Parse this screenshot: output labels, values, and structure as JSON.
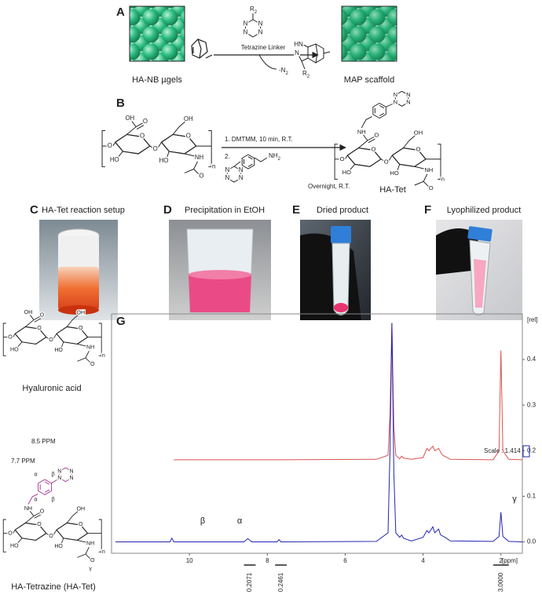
{
  "panels": {
    "A": {
      "letter": "A",
      "reagent_label": "Tetrazine Linker",
      "byproduct": "-N",
      "byproduct_sub": "2",
      "left_label": "HA-NB µgels",
      "right_label": "MAP scaffold",
      "r": "R",
      "r_sub": "2",
      "tetrazine_atoms": [
        "N",
        "N",
        "N",
        "N"
      ],
      "product_atoms": [
        "HN",
        "N"
      ],
      "product_r": "R",
      "product_r_sub": "2"
    },
    "B": {
      "letter": "B",
      "step1": "1. DMTMM, 10 min, R.T.",
      "step2": "2.",
      "amine": "NH",
      "amine_sub": "2",
      "step2_time": "Overnight, R.T.",
      "product_label": "HA-Tet",
      "reagent_tetrazine_atoms": [
        "N",
        "N",
        "N",
        "N"
      ],
      "product_tetrazine_atoms": [
        "N",
        "N",
        "N",
        "N"
      ],
      "start_labels": [
        "O",
        "OH",
        "O",
        "HO",
        "O",
        "O",
        "OH",
        "O",
        "HO",
        "NH",
        "O",
        "n"
      ],
      "product_labels": [
        "O",
        "NH",
        "O",
        "HO",
        "O",
        "O",
        "OH",
        "O",
        "HO",
        "NH",
        "O",
        "n"
      ]
    },
    "C": {
      "letter": "C",
      "title": "HA-Tet reaction setup"
    },
    "D": {
      "letter": "D",
      "title": "Precipitation in EtOH"
    },
    "E": {
      "letter": "E",
      "title": "Dried product"
    },
    "F": {
      "letter": "F",
      "title": "Lyophilized product"
    },
    "G": {
      "letter": "G",
      "ha_labels": [
        "O",
        "OH",
        "O",
        "HO",
        "O",
        "O",
        "OH",
        "O",
        "HO",
        "NH",
        "O",
        "n"
      ],
      "ha_name": "Hyaluronic acid",
      "hatet_labels": [
        "O",
        "NH",
        "O",
        "HO",
        "O",
        "O",
        "OH",
        "O",
        "HO",
        "NH",
        "O",
        "n"
      ],
      "hatet_name": "HA-Tetrazine (HA-Tet)",
      "shift_beta": "8.5 PPM",
      "shift_alpha": "7.7 PPM",
      "ring_labels": [
        "α",
        "β",
        "α",
        "β"
      ],
      "methyl_label": "γ",
      "tetrazine_atoms": [
        "N",
        "N",
        "N",
        "N"
      ]
    }
  },
  "chart_data": {
    "type": "line",
    "x_label": "[ppm]",
    "y_label": "[rel]",
    "scale_note": "Scale : 1.414",
    "peak_labels": [
      "β",
      "α",
      "γ"
    ],
    "x": [
      11.9,
      10.5,
      10.45,
      10.4,
      8.6,
      8.5,
      8.4,
      7.75,
      7.7,
      7.65,
      5.2,
      4.9,
      4.85,
      4.8,
      4.75,
      4.7,
      4.6,
      4.55,
      4.5,
      4.3,
      4.0,
      3.9,
      3.85,
      3.75,
      3.7,
      3.6,
      3.55,
      3.5,
      3.4,
      3.3,
      2.2,
      2.05,
      2.0,
      1.95,
      1.8,
      1.45
    ],
    "series": [
      {
        "color": "#d9534f",
        "values": [
          null,
          null,
          null,
          0.18,
          0.18,
          0.18,
          0.18,
          0.18,
          0.18,
          0.18,
          0.181,
          0.19,
          0.28,
          0.48,
          0.25,
          0.19,
          0.182,
          0.188,
          0.184,
          0.181,
          0.185,
          0.205,
          0.2,
          0.21,
          0.2,
          0.205,
          0.197,
          0.19,
          0.186,
          0.181,
          0.18,
          0.2,
          0.42,
          0.2,
          0.181,
          0.18
        ]
      },
      {
        "color": "#2323b5",
        "values": [
          0,
          0,
          0.008,
          0,
          0,
          0.007,
          0,
          0,
          0.005,
          0,
          0.001,
          0.02,
          0.2,
          0.48,
          0.15,
          0.02,
          0.01,
          0.015,
          0.008,
          0.002,
          0.01,
          0.025,
          0.02,
          0.033,
          0.02,
          0.028,
          0.015,
          0.013,
          0.008,
          0.002,
          0.001,
          0.012,
          0.065,
          0.012,
          0.001,
          0
        ]
      }
    ],
    "xlim": [
      12,
      1.45
    ],
    "xticks": [
      10,
      8,
      6,
      4,
      2
    ],
    "ylim": [
      -0.025,
      0.5
    ],
    "yticks": [
      {
        "value": 0,
        "label": "0.0"
      },
      0.1,
      0.2,
      0.3,
      0.4
    ],
    "integrals": {
      "ranges": [
        [
          8.6,
          8.3
        ],
        [
          7.8,
          7.5
        ],
        [
          2.2,
          1.8
        ]
      ],
      "values": [
        0.2071,
        0.2461,
        3
      ],
      "value_labels": [
        "0.2071",
        "0.2461",
        "3.0000"
      ]
    }
  }
}
